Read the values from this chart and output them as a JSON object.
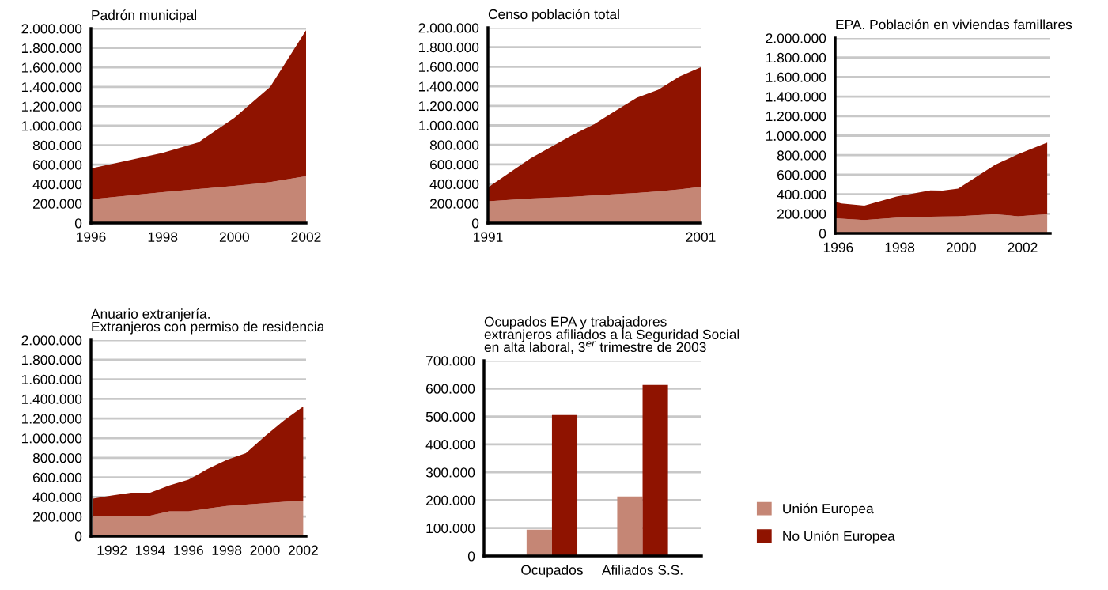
{
  "chart_data": [
    {
      "type": "area",
      "title": "Padrón municipal",
      "stacked": true,
      "x": [
        1996,
        1997,
        1998,
        1999,
        2000,
        2001,
        2002
      ],
      "xlim": [
        1996,
        2002
      ],
      "xticks": [
        1996,
        1998,
        2000,
        2002
      ],
      "ylim": [
        0,
        2000000
      ],
      "yticks": [
        {
          "value": 0,
          "label": "0"
        },
        {
          "value": 200000,
          "label": "200.000"
        },
        {
          "value": 400000,
          "label": "400.000"
        },
        {
          "value": 600000,
          "label": "600.000"
        },
        {
          "value": 800000,
          "label": "800.000"
        },
        {
          "value": 1000000,
          "label": "1.000.000"
        },
        {
          "value": 1200000,
          "label": "1.200.000"
        },
        {
          "value": 1400000,
          "label": "1.400.000"
        },
        {
          "value": 1600000,
          "label": "1.600.000"
        },
        {
          "value": 1800000,
          "label": "1.800.000"
        },
        {
          "value": 2000000,
          "label": "2.000.000"
        }
      ],
      "grid": "y",
      "series": [
        {
          "color": "#c58675",
          "values": [
            244000,
            280000,
            317000,
            350000,
            382000,
            420000,
            482000
          ]
        },
        {
          "color": "#8f1300",
          "values": [
            317000,
            360000,
            405000,
            480000,
            700000,
            980000,
            1500000
          ]
        }
      ]
    },
    {
      "type": "area",
      "title": "Censo población total",
      "stacked": true,
      "x": [
        1991,
        1993,
        1995,
        1996,
        1997,
        1998,
        1999,
        2000,
        2001
      ],
      "xlim": [
        1991,
        2001
      ],
      "xticks": [
        1991,
        2001
      ],
      "ylim": [
        0,
        2000000
      ],
      "yticks": [
        {
          "value": 0,
          "label": "0"
        },
        {
          "value": 200000,
          "label": "200.000"
        },
        {
          "value": 400000,
          "label": "400.000"
        },
        {
          "value": 600000,
          "label": "600.000"
        },
        {
          "value": 800000,
          "label": "800.000"
        },
        {
          "value": 1000000,
          "label": "1.000.000"
        },
        {
          "value": 1200000,
          "label": "1.200.000"
        },
        {
          "value": 1400000,
          "label": "1.400.000"
        },
        {
          "value": 1600000,
          "label": "1.600.000"
        },
        {
          "value": 1800000,
          "label": "1.800.000"
        },
        {
          "value": 2000000,
          "label": "2.000.000"
        }
      ],
      "grid": "y",
      "series": [
        {
          "color": "#c58675",
          "values": [
            222000,
            250000,
            270000,
            284000,
            295000,
            308000,
            324000,
            345000,
            370000
          ]
        },
        {
          "color": "#8f1300",
          "values": [
            143000,
            412000,
            635000,
            729000,
            854000,
            976000,
            1041000,
            1155000,
            1225000
          ]
        }
      ]
    },
    {
      "type": "area",
      "title": "EPA. Población en viviendas famillares",
      "stacked": true,
      "x": [
        1995.9,
        1996.1,
        1996.85,
        1997.9,
        1999.0,
        1999.4,
        1999.9,
        2001.1,
        2001.85,
        2002.8
      ],
      "xlim": [
        1995.9,
        2002.9
      ],
      "xticks": [
        1996,
        1998,
        2000,
        2002
      ],
      "ylim": [
        0,
        2000000
      ],
      "yticks": [
        {
          "value": 0,
          "label": "0"
        },
        {
          "value": 200000,
          "label": "200.000"
        },
        {
          "value": 400000,
          "label": "400.000"
        },
        {
          "value": 600000,
          "label": "600.000"
        },
        {
          "value": 800000,
          "label": "800.000"
        },
        {
          "value": 1000000,
          "label": "1.000.000"
        },
        {
          "value": 1200000,
          "label": "1.200.000"
        },
        {
          "value": 1400000,
          "label": "1.400.000"
        },
        {
          "value": 1600000,
          "label": "1.600.000"
        },
        {
          "value": 1800000,
          "label": "1.800.000"
        },
        {
          "value": 2000000,
          "label": "2.000.000"
        }
      ],
      "grid": "y",
      "series": [
        {
          "color": "#c58675",
          "values": [
            154000,
            150000,
            135000,
            159000,
            170000,
            172000,
            175000,
            197000,
            175000,
            197000
          ]
        },
        {
          "color": "#8f1300",
          "values": [
            169000,
            155000,
            148000,
            218000,
            269000,
            265000,
            283000,
            504000,
            634000,
            733000
          ]
        }
      ]
    },
    {
      "type": "area",
      "title": "Anuario extranjería.\nExtranjeros con permiso de residencia",
      "stacked": true,
      "x": [
        1991,
        1992,
        1993,
        1994,
        1995,
        1996,
        1997,
        1998,
        1999,
        2000,
        2001,
        2002
      ],
      "xlim": [
        1990.9,
        2002.15
      ],
      "xticks": [
        1992,
        1994,
        1996,
        1998,
        2000,
        2002
      ],
      "ylim": [
        0,
        2000000
      ],
      "yticks": [
        {
          "value": 0,
          "label": "0"
        },
        {
          "value": 200000,
          "label": "200.000"
        },
        {
          "value": 400000,
          "label": "400.000"
        },
        {
          "value": 600000,
          "label": "600.000"
        },
        {
          "value": 800000,
          "label": "800.000"
        },
        {
          "value": 1000000,
          "label": "1.000.000"
        },
        {
          "value": 1200000,
          "label": "1.200.000"
        },
        {
          "value": 1400000,
          "label": "1.400.000"
        },
        {
          "value": 1600000,
          "label": "1.600.000"
        },
        {
          "value": 1800000,
          "label": "1.800.000"
        },
        {
          "value": 2000000,
          "label": "2.000.000"
        }
      ],
      "grid": "y",
      "series": [
        {
          "color": "#c58675",
          "values": [
            209000,
            209000,
            209000,
            209000,
            255000,
            255000,
            282000,
            309000,
            322000,
            336000,
            350000,
            362000
          ]
        },
        {
          "color": "#8f1300",
          "values": [
            175000,
            207000,
            234000,
            234000,
            263000,
            322000,
            403000,
            470000,
            524000,
            684000,
            831000,
            961000
          ]
        }
      ]
    },
    {
      "type": "bar",
      "title": "Ocupados EPA y trabajadores\nextranjeros afiliados a la Seguridad Social\nen alta laboral, 3$^{er}$ trimestre de 2003",
      "categories": [
        "Ocupados",
        "Afiliados S.S."
      ],
      "ylim": [
        0,
        700000
      ],
      "yticks": [
        {
          "value": 0,
          "label": "0"
        },
        {
          "value": 100000,
          "label": "100.000"
        },
        {
          "value": 200000,
          "label": "200.000"
        },
        {
          "value": 300000,
          "label": "300.000"
        },
        {
          "value": 400000,
          "label": "400.000"
        },
        {
          "value": 500000,
          "label": "500.000"
        },
        {
          "value": 600000,
          "label": "600.000"
        },
        {
          "value": 700000,
          "label": "700.000"
        }
      ],
      "grid": "y",
      "legend": "bottom right",
      "series": [
        {
          "name": "Unión Europea",
          "color": "#c58675",
          "values": [
            94000,
            213000
          ]
        },
        {
          "name": "No Unión Europea",
          "color": "#8f1300",
          "values": [
            505000,
            613000
          ]
        }
      ]
    }
  ]
}
